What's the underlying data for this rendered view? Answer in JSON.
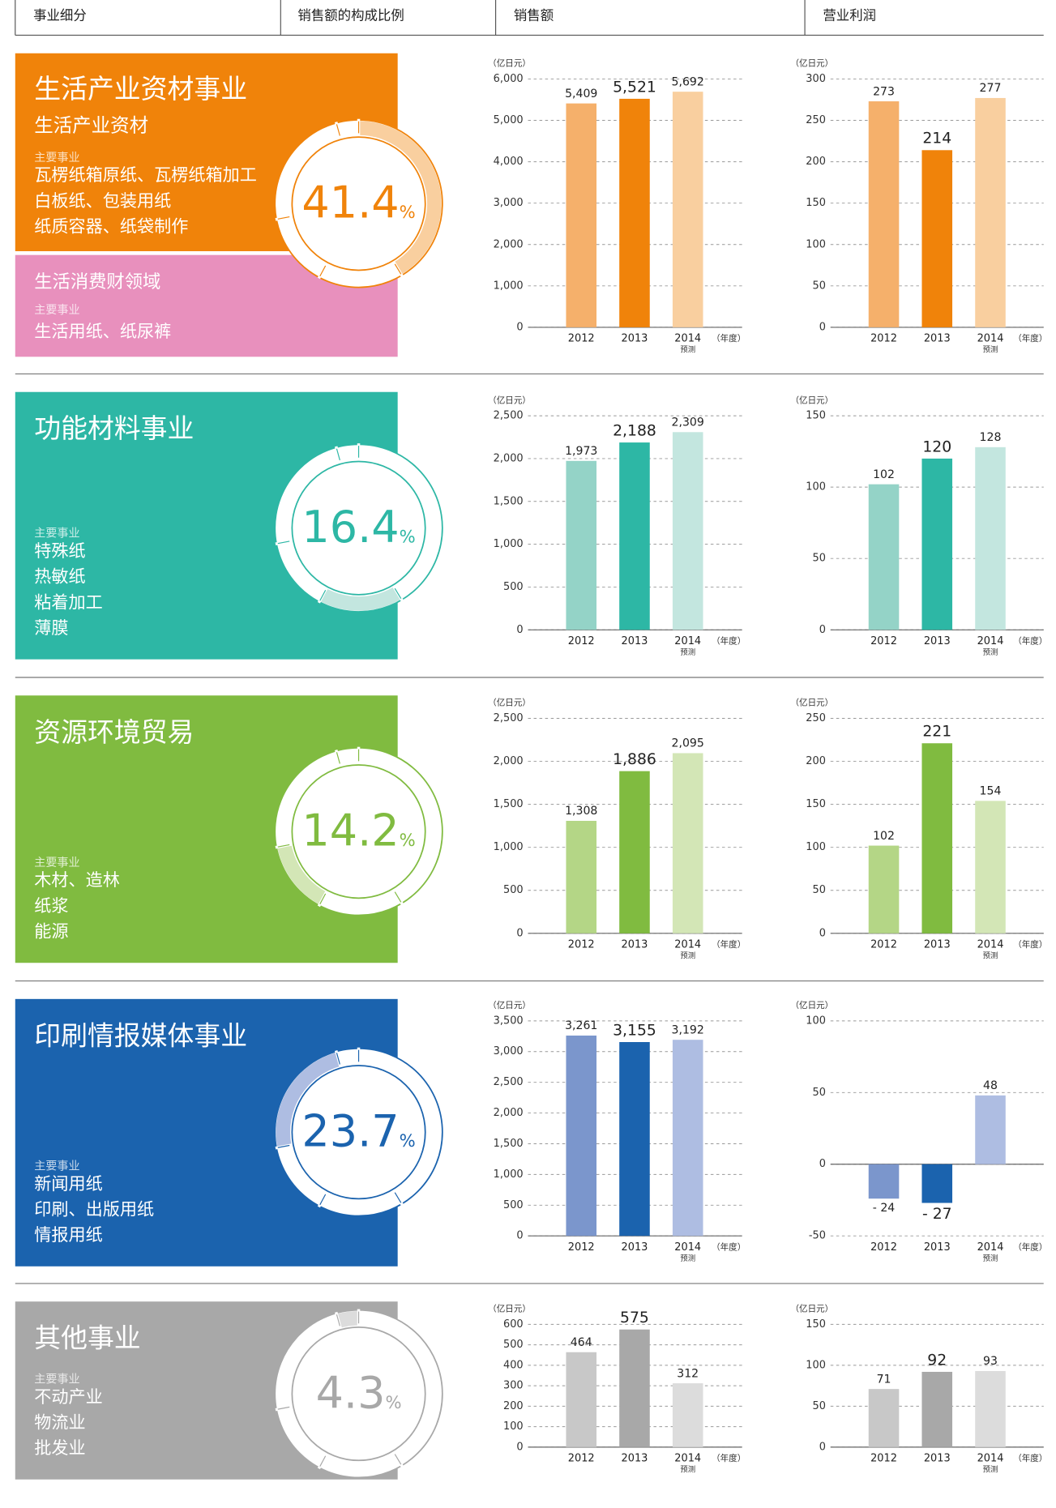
{
  "header": [
    "事业细分",
    "销售额的构成比例",
    "销售额",
    "营业利润"
  ],
  "segments": [
    {
      "title": "生活产业资材事业",
      "subtitle": "生活产业资材",
      "main_label": "主要事业",
      "items": [
        "瓦楞纸箱原纸、瓦楞纸箱加工",
        "白板纸、包装用纸",
        "纸质容器、纸袋制作"
      ],
      "sub_panel": {
        "title": "生活消费财领域",
        "main_label": "主要事业",
        "items": [
          "生活用纸、纸尿裤"
        ],
        "color": "#e890bd"
      },
      "share": 41.4,
      "share_unit": "%",
      "color": "#f0830a",
      "colors": [
        "#f5b06b",
        "#f0830a",
        "#f9cf9f"
      ],
      "sales": {
        "type": "bar",
        "unit_label": "（亿日元）",
        "x_unit": "（年度）",
        "categories": [
          "2012",
          "2013",
          "2014"
        ],
        "category_notes": [
          null,
          null,
          "预测"
        ],
        "values": [
          5409,
          5521,
          5692
        ],
        "value_labels": [
          "5,409",
          "5,521",
          "5,692"
        ],
        "ylim": [
          0,
          6000
        ],
        "yticks": [
          0,
          {
            "value": 1000,
            "label": "1,000"
          },
          {
            "value": 2000,
            "label": "2,000"
          },
          {
            "value": 3000,
            "label": "3,000"
          },
          {
            "value": 4000,
            "label": "4,000"
          },
          {
            "value": 5000,
            "label": "5,000"
          },
          {
            "value": 6000,
            "label": "6,000"
          }
        ]
      },
      "profit": {
        "type": "bar",
        "unit_label": "（亿日元）",
        "x_unit": "（年度）",
        "categories": [
          "2012",
          "2013",
          "2014"
        ],
        "category_notes": [
          null,
          null,
          "预测"
        ],
        "values": [
          273,
          214,
          277
        ],
        "ylim": [
          0,
          300
        ],
        "yticks": [
          0,
          50,
          100,
          150,
          200,
          250,
          300
        ]
      }
    },
    {
      "title": "功能材料事业",
      "main_label": "主要事业",
      "items": [
        "特殊纸",
        "热敏纸",
        "粘着加工",
        "薄膜"
      ],
      "share": 16.4,
      "share_unit": "%",
      "color": "#2db7a5",
      "colors": [
        "#94d3c7",
        "#2db7a5",
        "#c3e6df"
      ],
      "sales": {
        "type": "bar",
        "unit_label": "（亿日元）",
        "x_unit": "（年度）",
        "categories": [
          "2012",
          "2013",
          "2014"
        ],
        "category_notes": [
          null,
          null,
          "预测"
        ],
        "values": [
          1973,
          2188,
          2309
        ],
        "value_labels": [
          "1,973",
          "2,188",
          "2,309"
        ],
        "ylim": [
          0,
          2500
        ],
        "yticks": [
          0,
          500,
          {
            "value": 1000,
            "label": "1,000"
          },
          {
            "value": 1500,
            "label": "1,500"
          },
          {
            "value": 2000,
            "label": "2,000"
          },
          {
            "value": 2500,
            "label": "2,500"
          }
        ]
      },
      "profit": {
        "type": "bar",
        "unit_label": "（亿日元）",
        "x_unit": "（年度）",
        "categories": [
          "2012",
          "2013",
          "2014"
        ],
        "category_notes": [
          null,
          null,
          "预测"
        ],
        "values": [
          102,
          120,
          128
        ],
        "ylim": [
          0,
          150
        ],
        "yticks": [
          0,
          50,
          100,
          150
        ]
      }
    },
    {
      "title": "资源环境贸易",
      "main_label": "主要事业",
      "items": [
        "木材、造林",
        "纸浆",
        "能源"
      ],
      "share": 14.2,
      "share_unit": "%",
      "color": "#80bb40",
      "colors": [
        "#b4d686",
        "#80bb40",
        "#d3e6b6"
      ],
      "sales": {
        "type": "bar",
        "unit_label": "（亿日元）",
        "x_unit": "（年度）",
        "categories": [
          "2012",
          "2013",
          "2014"
        ],
        "category_notes": [
          null,
          null,
          "预测"
        ],
        "values": [
          1308,
          1886,
          2095
        ],
        "value_labels": [
          "1,308",
          "1,886",
          "2,095"
        ],
        "ylim": [
          0,
          2500
        ],
        "yticks": [
          0,
          500,
          {
            "value": 1000,
            "label": "1,000"
          },
          {
            "value": 1500,
            "label": "1,500"
          },
          {
            "value": 2000,
            "label": "2,000"
          },
          {
            "value": 2500,
            "label": "2,500"
          }
        ]
      },
      "profit": {
        "type": "bar",
        "unit_label": "（亿日元）",
        "x_unit": "（年度）",
        "categories": [
          "2012",
          "2013",
          "2014"
        ],
        "category_notes": [
          null,
          null,
          "预测"
        ],
        "values": [
          102,
          221,
          154
        ],
        "ylim": [
          0,
          250
        ],
        "yticks": [
          0,
          50,
          100,
          150,
          200,
          250
        ]
      }
    },
    {
      "title": "印刷情报媒体事业",
      "main_label": "主要事业",
      "items": [
        "新闻用纸",
        "印刷、出版用纸",
        "情报用纸"
      ],
      "share": 23.7,
      "share_unit": "%",
      "color": "#1b63ae",
      "colors": [
        "#7b96cc",
        "#1b63ae",
        "#aebde2"
      ],
      "sales": {
        "type": "bar",
        "unit_label": "（亿日元）",
        "x_unit": "（年度）",
        "categories": [
          "2012",
          "2013",
          "2014"
        ],
        "category_notes": [
          null,
          null,
          "预测"
        ],
        "values": [
          3261,
          3155,
          3192
        ],
        "value_labels": [
          "3,261",
          "3,155",
          "3,192"
        ],
        "ylim": [
          0,
          3500
        ],
        "yticks": [
          0,
          500,
          {
            "value": 1000,
            "label": "1,000"
          },
          {
            "value": 1500,
            "label": "1,500"
          },
          {
            "value": 2000,
            "label": "2,000"
          },
          {
            "value": 2500,
            "label": "2,500"
          },
          {
            "value": 3000,
            "label": "3,000"
          },
          {
            "value": 3500,
            "label": "3,500"
          }
        ]
      },
      "profit": {
        "type": "bar",
        "unit_label": "（亿日元）",
        "x_unit": "（年度）",
        "categories": [
          "2012",
          "2013",
          "2014"
        ],
        "category_notes": [
          null,
          null,
          "预测"
        ],
        "values": [
          -24,
          -27,
          48
        ],
        "value_labels": [
          "- 24",
          "- 27",
          "48"
        ],
        "ylim": [
          -50,
          100
        ],
        "yticks": [
          -50,
          0,
          50,
          100
        ]
      }
    },
    {
      "title": "其他事业",
      "main_label": "主要事业",
      "items": [
        "不动产业",
        "物流业",
        "批发业"
      ],
      "share": 4.3,
      "share_unit": "%",
      "color": "#a8a8a8",
      "colors": [
        "#c8c8c8",
        "#a8a8a8",
        "#dcdcdc"
      ],
      "sales": {
        "type": "bar",
        "unit_label": "（亿日元）",
        "x_unit": "（年度）",
        "categories": [
          "2012",
          "2013",
          "2014"
        ],
        "category_notes": [
          null,
          null,
          "预测"
        ],
        "values": [
          464,
          575,
          312
        ],
        "ylim": [
          0,
          600
        ],
        "yticks": [
          0,
          100,
          200,
          300,
          400,
          500,
          600
        ]
      },
      "profit": {
        "type": "bar",
        "unit_label": "（亿日元）",
        "x_unit": "（年度）",
        "categories": [
          "2012",
          "2013",
          "2014"
        ],
        "category_notes": [
          null,
          null,
          "预测"
        ],
        "values": [
          71,
          92,
          93
        ],
        "ylim": [
          0,
          150
        ],
        "yticks": [
          0,
          50,
          100,
          150
        ]
      }
    }
  ]
}
